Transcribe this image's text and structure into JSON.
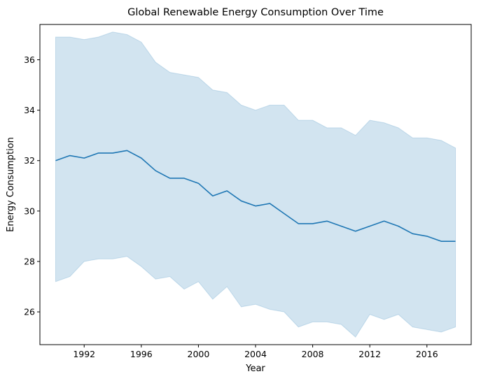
{
  "chart_data": {
    "type": "line",
    "title": "Global Renewable Energy Consumption Over Time",
    "xlabel": "Year",
    "ylabel": "Energy Consumption",
    "xlim": [
      1988.9,
      2019.1
    ],
    "ylim": [
      24.7,
      37.4
    ],
    "xticks": [
      1992,
      1996,
      2000,
      2004,
      2008,
      2012,
      2016
    ],
    "yticks": [
      26,
      28,
      30,
      32,
      34,
      36
    ],
    "grid": false,
    "legend": "none",
    "colors": {
      "line": "#1f77b4",
      "band": "#1f77b4"
    },
    "series": [
      {
        "x": [
          1990,
          1991,
          1992,
          1993,
          1994,
          1995,
          1996,
          1997,
          1998,
          1999,
          2000,
          2001,
          2002,
          2003,
          2004,
          2005,
          2006,
          2007,
          2008,
          2009,
          2010,
          2011,
          2012,
          2013,
          2014,
          2015,
          2016,
          2017,
          2018
        ],
        "y": [
          32.0,
          32.2,
          32.1,
          32.3,
          32.3,
          32.4,
          32.1,
          31.6,
          31.3,
          31.3,
          31.1,
          30.6,
          30.8,
          30.4,
          30.2,
          30.3,
          29.9,
          29.5,
          29.5,
          29.6,
          29.4,
          29.2,
          29.4,
          29.6,
          29.4,
          29.1,
          29.0,
          28.8,
          28.8
        ],
        "lower": [
          27.2,
          27.4,
          28.0,
          28.1,
          28.1,
          28.2,
          27.8,
          27.3,
          27.4,
          26.9,
          27.2,
          26.5,
          27.0,
          26.2,
          26.3,
          26.1,
          26.0,
          25.4,
          25.6,
          25.6,
          25.5,
          25.0,
          25.9,
          25.7,
          25.9,
          25.4,
          25.3,
          25.2,
          25.4
        ],
        "upper": [
          36.9,
          36.9,
          36.8,
          36.9,
          37.1,
          37.0,
          36.7,
          35.9,
          35.5,
          35.4,
          35.3,
          34.8,
          34.7,
          34.2,
          34.0,
          34.2,
          34.2,
          33.6,
          33.6,
          33.3,
          33.3,
          33.0,
          33.6,
          33.5,
          33.3,
          32.9,
          32.9,
          32.8,
          32.5
        ]
      }
    ]
  }
}
